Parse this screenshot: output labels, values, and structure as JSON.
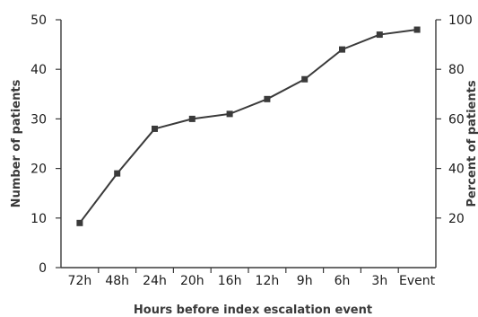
{
  "chart_data": {
    "type": "line",
    "title": "",
    "xlabel": "Hours before index escalation event",
    "ylabel": "Number of patients",
    "y2label": "Percent of patients",
    "categories": [
      "72h",
      "48h",
      "24h",
      "20h",
      "16h",
      "12h",
      "9h",
      "6h",
      "3h",
      "Event"
    ],
    "ylim": [
      0,
      50
    ],
    "y_ticks": [
      0,
      10,
      20,
      30,
      40,
      50
    ],
    "y2lim": [
      0,
      100
    ],
    "y2_ticks": [
      20,
      40,
      60,
      80,
      100
    ],
    "series": [
      {
        "values": [
          9,
          19,
          28,
          30,
          31,
          34,
          38,
          44,
          47,
          48
        ],
        "color": "#3a3a3a"
      }
    ],
    "grid": false,
    "legend": "none",
    "marker": "square"
  }
}
